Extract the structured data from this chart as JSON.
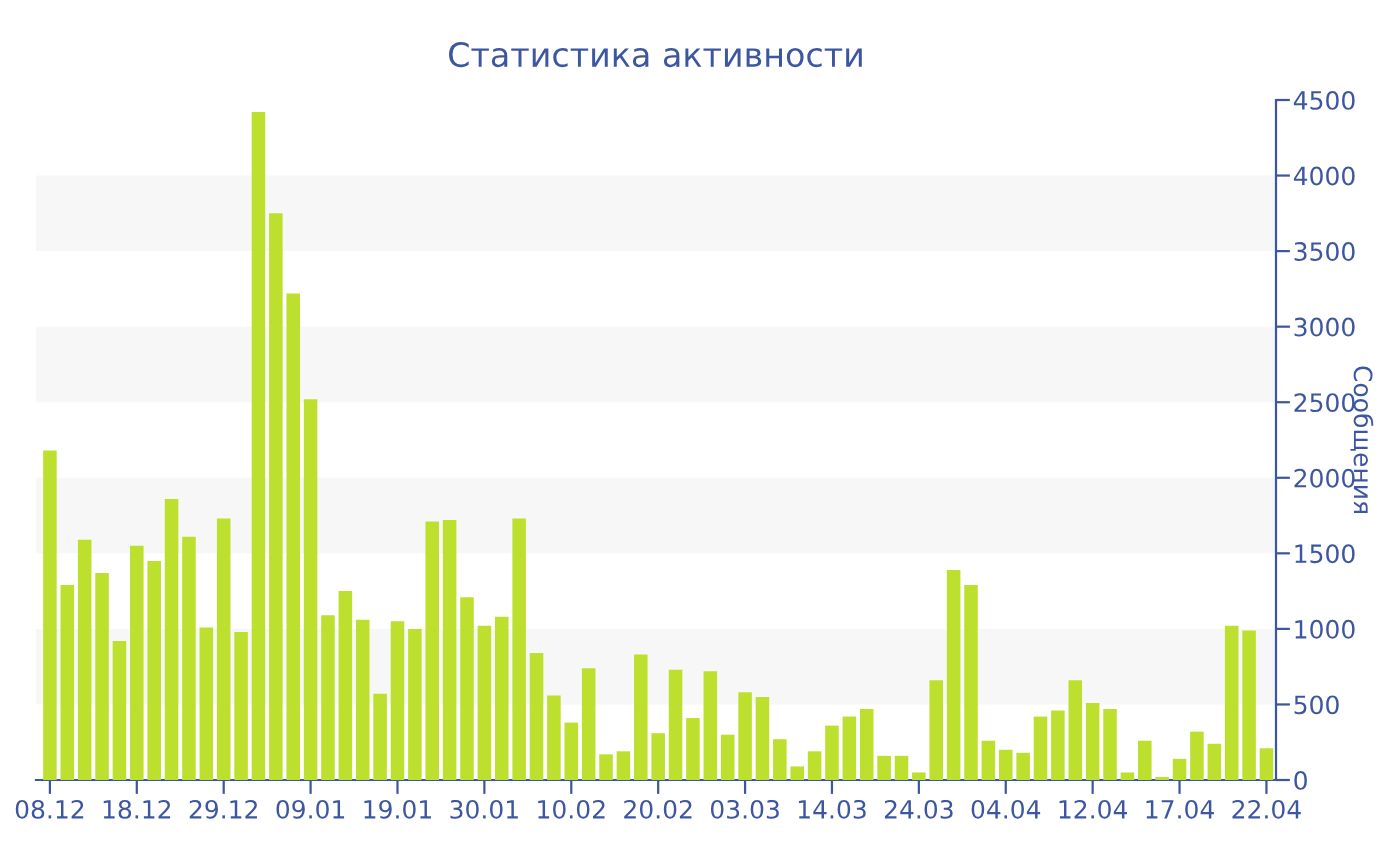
{
  "chart_data": {
    "type": "bar",
    "title": "Статистика активности",
    "ylabel": "Сообщения",
    "categories": [
      "08.12",
      null,
      null,
      null,
      null,
      "18.12",
      null,
      null,
      null,
      null,
      "29.12",
      null,
      null,
      null,
      null,
      "09.01",
      null,
      null,
      null,
      null,
      "19.01",
      null,
      null,
      null,
      null,
      "30.01",
      null,
      null,
      null,
      null,
      "10.02",
      null,
      null,
      null,
      null,
      "20.02",
      null,
      null,
      null,
      null,
      "03.03",
      null,
      null,
      null,
      null,
      "14.03",
      null,
      null,
      null,
      null,
      "24.03",
      null,
      null,
      null,
      null,
      "04.04",
      null,
      null,
      null,
      null,
      "12.04",
      null,
      null,
      null,
      null,
      "17.04",
      null,
      null,
      null,
      null,
      "22.04"
    ],
    "values": [
      2180,
      1290,
      1590,
      1370,
      920,
      1550,
      1450,
      1860,
      1610,
      1010,
      1730,
      980,
      4420,
      3750,
      3220,
      2520,
      1090,
      1250,
      1060,
      570,
      1050,
      1000,
      1710,
      1720,
      1210,
      1020,
      1080,
      1730,
      840,
      560,
      380,
      740,
      170,
      190,
      830,
      310,
      730,
      410,
      720,
      300,
      580,
      550,
      270,
      90,
      190,
      360,
      420,
      470,
      160,
      160,
      50,
      660,
      1390,
      1290,
      260,
      200,
      180,
      420,
      460,
      660,
      510,
      470,
      50,
      260,
      20,
      140,
      320,
      240,
      1020,
      990,
      210
    ],
    "color": "#bde02f",
    "ylim": [
      0,
      4500
    ],
    "yticks": [
      0,
      500,
      1000,
      1500,
      2000,
      2500,
      3000,
      3500,
      4000,
      4500
    ],
    "bands": [
      {
        "axis": "y",
        "from": 500,
        "to": 1000,
        "color": "#f7f7f7"
      },
      {
        "axis": "y",
        "from": 1500,
        "to": 2000,
        "color": "#f7f7f7"
      },
      {
        "axis": "y",
        "from": 2500,
        "to": 3000,
        "color": "#f7f7f7"
      },
      {
        "axis": "y",
        "from": 3500,
        "to": 4000,
        "color": "#f7f7f7"
      }
    ],
    "grid": false,
    "legend": false
  }
}
